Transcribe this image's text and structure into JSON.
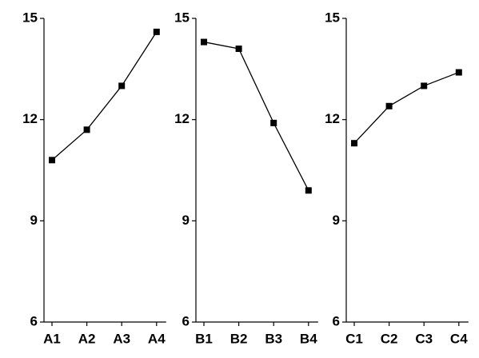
{
  "chart_data": [
    {
      "type": "line",
      "categories": [
        "A1",
        "A2",
        "A3",
        "A4"
      ],
      "values": [
        10.8,
        11.7,
        13.0,
        14.6
      ],
      "color": "#000000",
      "ylim": [
        6,
        15
      ],
      "yticks": [
        6,
        9,
        12,
        15
      ]
    },
    {
      "type": "line",
      "categories": [
        "B1",
        "B2",
        "B3",
        "B4"
      ],
      "values": [
        14.3,
        14.1,
        11.9,
        9.9
      ],
      "color": "#000000",
      "ylim": [
        6,
        15
      ],
      "yticks": [
        6,
        9,
        12,
        15
      ]
    },
    {
      "type": "line",
      "categories": [
        "C1",
        "C2",
        "C3",
        "C4"
      ],
      "values": [
        11.3,
        12.4,
        13.0,
        13.4
      ],
      "color": "#000000",
      "ylim": [
        6,
        15
      ],
      "yticks": [
        6,
        9,
        12,
        15
      ]
    }
  ]
}
